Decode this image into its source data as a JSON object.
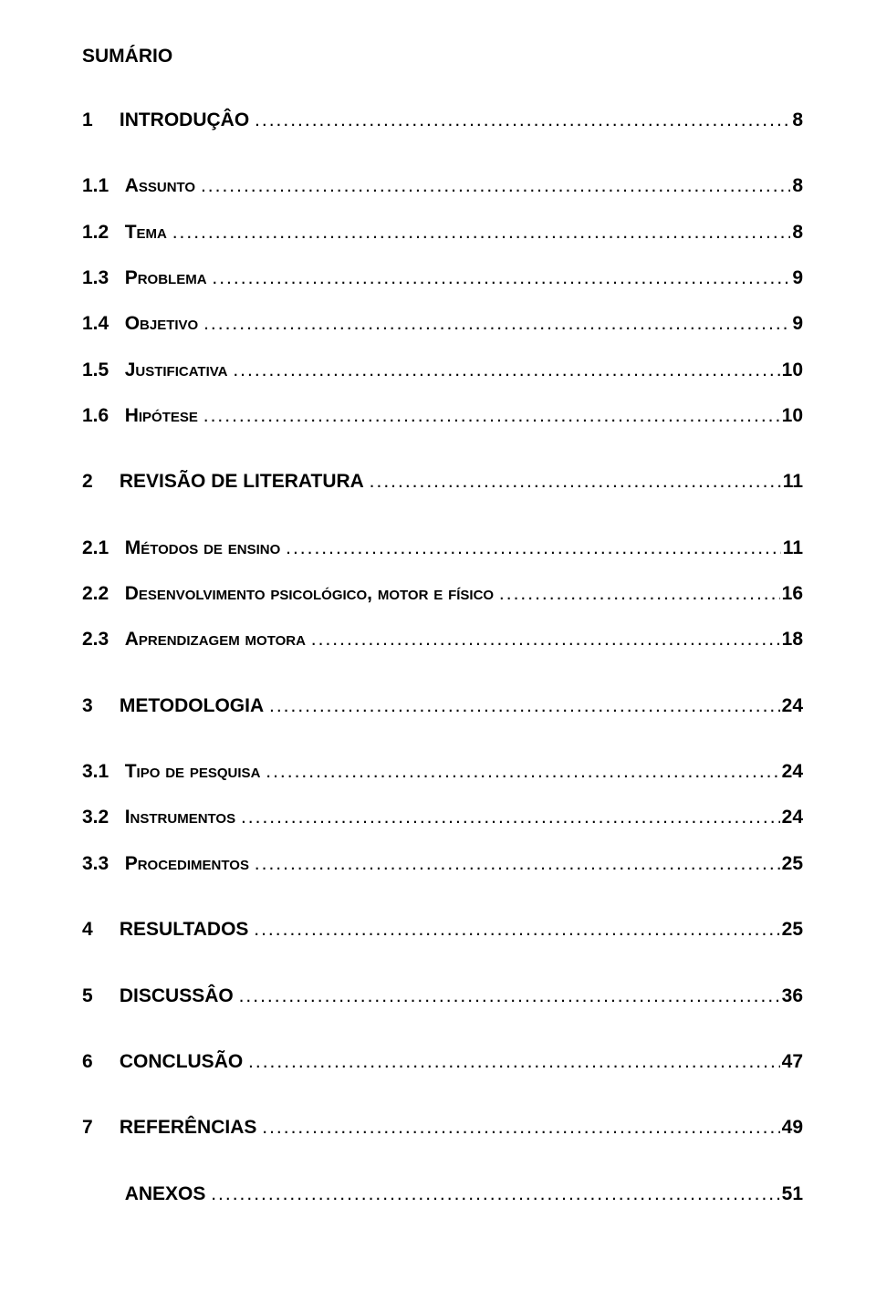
{
  "doc": {
    "title": "SUMÁRIO",
    "font_family": "Arial",
    "text_color": "#000000",
    "background_color": "#ffffff",
    "title_fontsize_pt": 16,
    "entry_fontsize_pt": 16
  },
  "dots": "...................................................................................................................................................................................",
  "entries": [
    {
      "level": 1,
      "num": "1",
      "label": "INTRODUÇÂO",
      "page": "8",
      "smallcaps": false
    },
    {
      "level": 2,
      "num": "1.1",
      "label": "Assunto",
      "page": "8",
      "smallcaps": true
    },
    {
      "level": 2,
      "num": "1.2",
      "label": "Tema",
      "page": "8",
      "smallcaps": true
    },
    {
      "level": 2,
      "num": "1.3",
      "label": "Problema",
      "page": "9",
      "smallcaps": true
    },
    {
      "level": 2,
      "num": "1.4",
      "label": "Objetivo",
      "page": "9",
      "smallcaps": true
    },
    {
      "level": 2,
      "num": "1.5",
      "label": "Justificativa",
      "page": "10",
      "smallcaps": true
    },
    {
      "level": 2,
      "num": "1.6",
      "label": "Hipótese",
      "page": "10",
      "smallcaps": true,
      "gap_after": true
    },
    {
      "level": 1,
      "num": "2",
      "label": "REVISÃO DE LITERATURA",
      "page": "11",
      "smallcaps": false
    },
    {
      "level": 2,
      "num": "2.1",
      "label": "Métodos de ensino",
      "page": "11",
      "smallcaps": true
    },
    {
      "level": 2,
      "num": "2.2",
      "label": "Desenvolvimento psicológico, motor e físico",
      "page": "16",
      "smallcaps": true
    },
    {
      "level": 2,
      "num": "2.3",
      "label": "Aprendizagem motora",
      "page": "18",
      "smallcaps": true,
      "gap_after": true
    },
    {
      "level": 1,
      "num": "3",
      "label": "METODOLOGIA",
      "page": "24",
      "smallcaps": false
    },
    {
      "level": 2,
      "num": "3.1",
      "label": "Tipo de pesquisa",
      "page": "24",
      "smallcaps": true
    },
    {
      "level": 2,
      "num": "3.2",
      "label": "Instrumentos",
      "page": "24",
      "smallcaps": true
    },
    {
      "level": 2,
      "num": "3.3",
      "label": "Procedimentos",
      "page": "25",
      "smallcaps": true,
      "gap_after": true
    },
    {
      "level": 1,
      "num": "4",
      "label": "RESULTADOS",
      "page": "25",
      "smallcaps": false
    },
    {
      "level": 1,
      "num": "5",
      "label": "DISCUSSÂO",
      "page": "36",
      "smallcaps": false
    },
    {
      "level": 1,
      "num": "6",
      "label": "CONCLUSÃO",
      "page": "47",
      "smallcaps": false
    },
    {
      "level": 1,
      "num": "7",
      "label": "REFERÊNCIAS",
      "page": "49",
      "smallcaps": false
    },
    {
      "level": 1,
      "num": "",
      "label": "ANEXOS",
      "page": "51",
      "smallcaps": false,
      "indent": true
    }
  ]
}
